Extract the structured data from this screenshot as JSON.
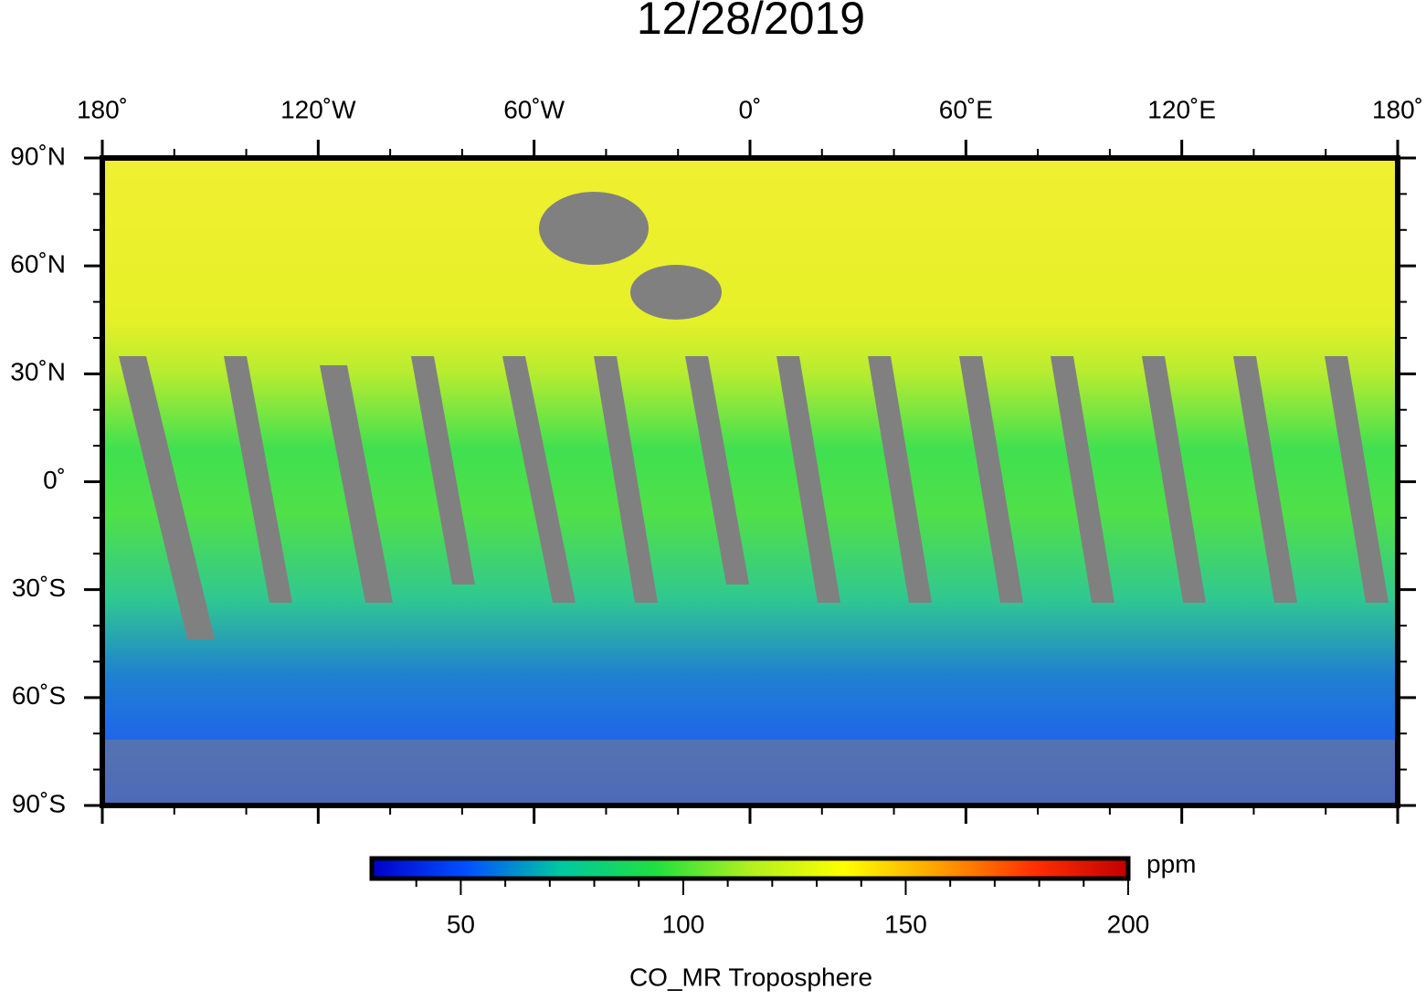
{
  "title": "12/28/2019",
  "map": {
    "lonlim": [
      -180,
      180
    ],
    "latlim": [
      -90,
      90
    ],
    "lon_ticks": [
      {
        "value": -180,
        "label": "180˚"
      },
      {
        "value": -120,
        "label": "120˚W"
      },
      {
        "value": -60,
        "label": "60˚W"
      },
      {
        "value": 0,
        "label": "0˚"
      },
      {
        "value": 60,
        "label": "60˚E"
      },
      {
        "value": 120,
        "label": "120˚E"
      },
      {
        "value": 180,
        "label": "180˚"
      }
    ],
    "lat_ticks": [
      {
        "value": 90,
        "label": "90˚N"
      },
      {
        "value": 60,
        "label": "60˚N"
      },
      {
        "value": 30,
        "label": "30˚N"
      },
      {
        "value": 0,
        "label": "0˚"
      },
      {
        "value": -30,
        "label": "30˚S"
      },
      {
        "value": -60,
        "label": "60˚S"
      },
      {
        "value": -90,
        "label": "90˚S"
      }
    ],
    "lon_minor_ticks": [
      -160,
      -140,
      -100,
      -80,
      -40,
      -20,
      20,
      40,
      80,
      100,
      140,
      160
    ],
    "lat_minor_ticks": [
      80,
      70,
      50,
      40,
      20,
      10,
      -10,
      -20,
      -40,
      -50,
      -70,
      -80
    ]
  },
  "colorbar": {
    "range": [
      30,
      200
    ],
    "ticks": [
      50,
      100,
      150,
      200
    ],
    "minor_ticks": [
      40,
      60,
      70,
      80,
      90,
      110,
      120,
      130,
      140,
      160,
      170,
      180,
      190
    ],
    "unit": "ppm",
    "label": "CO_MR Troposphere",
    "colors": [
      "#0000c8",
      "#0050ff",
      "#00c8a0",
      "#20e040",
      "#b0f020",
      "#ffff00",
      "#ffa000",
      "#ff3000",
      "#c00000"
    ]
  }
}
